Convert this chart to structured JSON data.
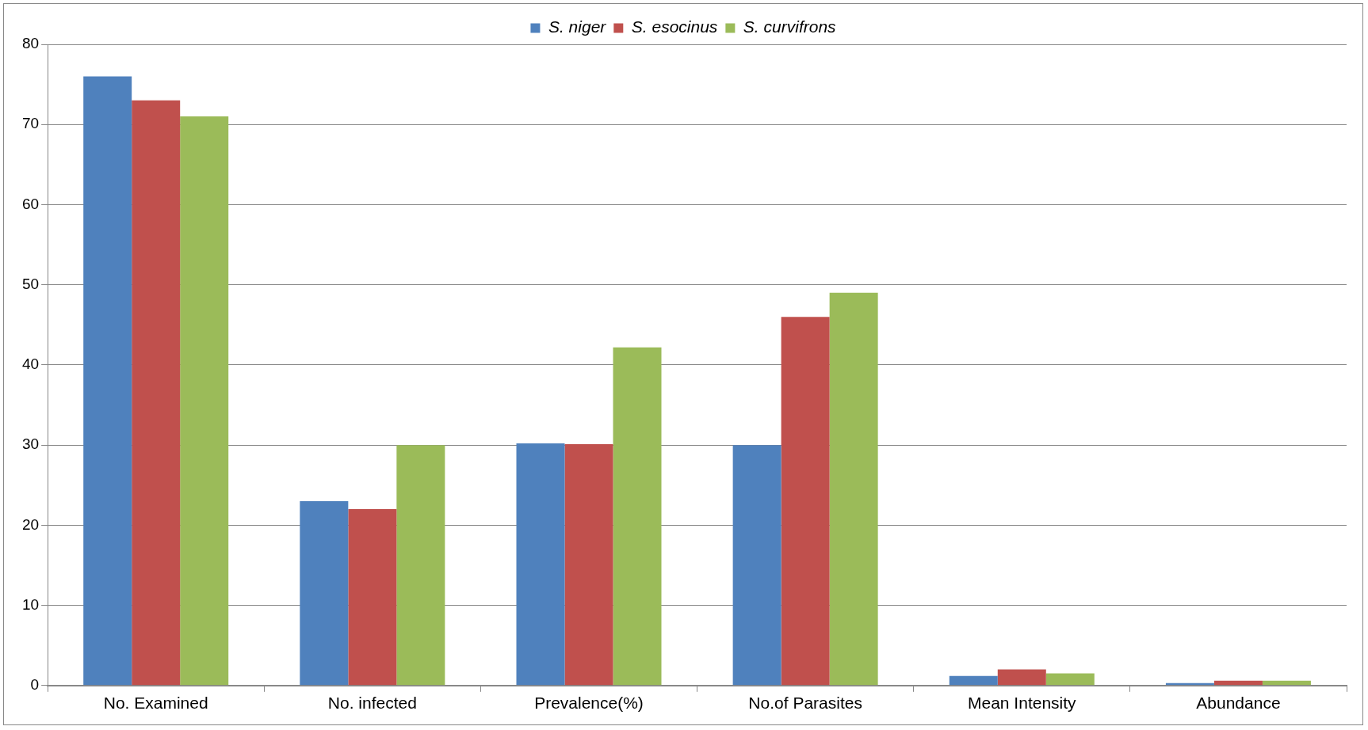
{
  "chart_data": {
    "type": "bar",
    "categories": [
      "No. Examined",
      "No. infected",
      "Prevalence(%)",
      "No.of Parasites",
      "Mean Intensity",
      "Abundance"
    ],
    "series": [
      {
        "name": "S. niger",
        "color": "#4f81bd",
        "values": [
          76,
          23,
          30.2,
          30,
          1.2,
          0.3
        ]
      },
      {
        "name": "S. esocinus",
        "color": "#c0504d",
        "values": [
          73,
          22,
          30.1,
          46,
          2.0,
          0.6
        ]
      },
      {
        "name": "S. curvifrons",
        "color": "#9bbb59",
        "values": [
          71,
          30,
          42.2,
          49,
          1.5,
          0.6
        ]
      }
    ],
    "ylim": [
      0,
      80
    ],
    "yticks": [
      0,
      10,
      20,
      30,
      40,
      50,
      60,
      70,
      80
    ],
    "grid": "y",
    "legend": "top"
  }
}
